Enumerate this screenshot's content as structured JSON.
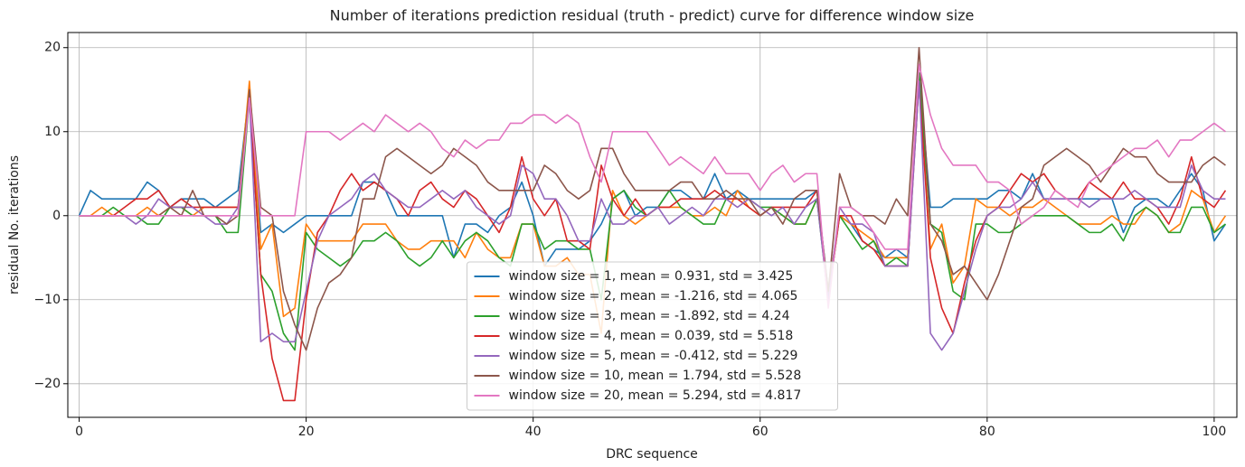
{
  "chart_data": {
    "type": "line",
    "title": "Number of iterations prediction residual (truth - predict) curve for difference window size",
    "xlabel": "DRC sequence",
    "ylabel": "residual No. iterations",
    "x": [
      0,
      1,
      2,
      3,
      4,
      5,
      6,
      7,
      8,
      9,
      10,
      11,
      12,
      13,
      14,
      15,
      16,
      17,
      18,
      19,
      20,
      21,
      22,
      23,
      24,
      25,
      26,
      27,
      28,
      29,
      30,
      31,
      32,
      33,
      34,
      35,
      36,
      37,
      38,
      39,
      40,
      41,
      42,
      43,
      44,
      45,
      46,
      47,
      48,
      49,
      50,
      51,
      52,
      53,
      54,
      55,
      56,
      57,
      58,
      59,
      60,
      61,
      62,
      63,
      64,
      65,
      66,
      67,
      68,
      69,
      70,
      71,
      72,
      73,
      74,
      75,
      76,
      77,
      78,
      79,
      80,
      81,
      82,
      83,
      84,
      85,
      86,
      87,
      88,
      89,
      90,
      91,
      92,
      93,
      94,
      95,
      96,
      97,
      98,
      99,
      100,
      101
    ],
    "xlim": [
      -1,
      102
    ],
    "ylim": [
      -24,
      21.8
    ],
    "xticks": [
      0,
      20,
      40,
      60,
      80,
      100
    ],
    "yticks": [
      {
        "value": -20,
        "label": "−20"
      },
      {
        "value": -10,
        "label": "−10"
      },
      0,
      10,
      20
    ],
    "grid": true,
    "legend": "lower center",
    "series": [
      {
        "name": "window size = 1, mean = 0.931, std = 3.425",
        "color": "#1f77b4",
        "values": [
          0,
          3,
          2,
          2,
          2,
          2,
          4,
          3,
          1,
          2,
          2,
          2,
          1,
          2,
          3,
          15,
          -2,
          -1,
          -2,
          -1,
          0,
          0,
          0,
          0,
          0,
          4,
          4,
          3,
          0,
          0,
          0,
          0,
          0,
          -5,
          -1,
          -1,
          -2,
          0,
          1,
          4,
          0,
          -6,
          -4,
          -4,
          -4,
          -3,
          -1,
          2,
          3,
          0,
          1,
          1,
          3,
          3,
          2,
          2,
          5,
          2,
          3,
          2,
          2,
          2,
          2,
          2,
          2,
          3,
          -9,
          0,
          -1,
          -3,
          -4,
          -5,
          -4,
          -5,
          17,
          1,
          1,
          2,
          2,
          2,
          2,
          3,
          3,
          2,
          5,
          2,
          2,
          2,
          2,
          2,
          2,
          2,
          -2,
          1,
          2,
          2,
          1,
          3,
          5,
          3,
          -3,
          -1
        ]
      },
      {
        "name": "window size = 2, mean = -1.216, std = 4.065",
        "color": "#ff7f0e",
        "values": [
          0,
          0,
          1,
          0,
          0,
          0,
          1,
          0,
          1,
          1,
          0,
          1,
          1,
          1,
          1,
          16,
          -4,
          -1,
          -12,
          -11,
          -1,
          -3,
          -3,
          -3,
          -3,
          -1,
          -1,
          -1,
          -3,
          -4,
          -4,
          -3,
          -3,
          -3,
          -5,
          -2,
          -4,
          -5,
          -5,
          -1,
          -1,
          -6,
          -6,
          -5,
          -7,
          -7,
          -14,
          3,
          0,
          -1,
          0,
          1,
          1,
          1,
          0,
          0,
          1,
          0,
          3,
          1,
          0,
          1,
          0,
          -1,
          -1,
          2,
          -9,
          0,
          -1,
          -2,
          -3,
          -5,
          -5,
          -5,
          16,
          -4,
          -1,
          -8,
          -6,
          2,
          1,
          1,
          0,
          1,
          1,
          2,
          1,
          0,
          -1,
          -1,
          -1,
          0,
          -1,
          -1,
          1,
          0,
          -2,
          -1,
          3,
          2,
          -2,
          0
        ]
      },
      {
        "name": "window size = 3, mean = -1.892, std = 4.24",
        "color": "#2ca02c",
        "values": [
          0,
          0,
          0,
          1,
          0,
          0,
          -1,
          -1,
          1,
          1,
          0,
          0,
          0,
          -2,
          -2,
          14,
          -7,
          -9,
          -14,
          -16,
          -2,
          -4,
          -5,
          -6,
          -5,
          -3,
          -3,
          -2,
          -3,
          -5,
          -6,
          -5,
          -3,
          -5,
          -3,
          -2,
          -3,
          -5,
          -6,
          -1,
          -1,
          -4,
          -3,
          -3,
          -4,
          -4,
          -10,
          2,
          3,
          1,
          0,
          1,
          3,
          1,
          0,
          -1,
          -1,
          2,
          2,
          2,
          1,
          1,
          0,
          -1,
          -1,
          2,
          -10,
          0,
          -2,
          -4,
          -3,
          -6,
          -5,
          -6,
          17,
          -1,
          -2,
          -9,
          -10,
          -1,
          -1,
          -2,
          -2,
          -1,
          0,
          0,
          0,
          0,
          -1,
          -2,
          -2,
          -1,
          -3,
          0,
          1,
          0,
          -2,
          -2,
          1,
          1,
          -2,
          -1
        ]
      },
      {
        "name": "window size = 4, mean = 0.039, std = 5.518",
        "color": "#d62728",
        "values": [
          0,
          0,
          0,
          0,
          1,
          2,
          2,
          3,
          1,
          2,
          1,
          1,
          1,
          1,
          1,
          14,
          -7,
          -17,
          -22,
          -22,
          -10,
          -2,
          0,
          3,
          5,
          3,
          4,
          3,
          2,
          0,
          3,
          4,
          2,
          1,
          3,
          2,
          0,
          -2,
          1,
          7,
          2,
          0,
          2,
          -3,
          -3,
          -4,
          6,
          2,
          0,
          2,
          0,
          1,
          1,
          2,
          2,
          2,
          3,
          2,
          2,
          1,
          0,
          1,
          1,
          1,
          1,
          3,
          -10,
          0,
          0,
          -3,
          -4,
          -6,
          -6,
          -6,
          16,
          -5,
          -11,
          -14,
          -8,
          -3,
          0,
          1,
          3,
          5,
          4,
          5,
          3,
          2,
          2,
          4,
          3,
          2,
          4,
          2,
          2,
          1,
          -1,
          2,
          7,
          2,
          1,
          3
        ]
      },
      {
        "name": "window size = 5, mean = -0.412, std = 5.229",
        "color": "#9467bd",
        "values": [
          0,
          0,
          0,
          0,
          0,
          -1,
          0,
          2,
          1,
          1,
          1,
          0,
          -1,
          -1,
          1,
          14,
          -15,
          -14,
          -15,
          -15,
          -9,
          -3,
          0,
          1,
          2,
          4,
          5,
          3,
          2,
          1,
          1,
          2,
          3,
          2,
          3,
          1,
          0,
          -1,
          0,
          6,
          5,
          2,
          2,
          0,
          -3,
          -3,
          2,
          -1,
          -1,
          0,
          0,
          1,
          -1,
          0,
          1,
          0,
          2,
          2,
          1,
          2,
          1,
          0,
          1,
          -1,
          1,
          2,
          -10,
          1,
          -1,
          -1,
          -2,
          -6,
          -6,
          -6,
          16,
          -14,
          -16,
          -14,
          -9,
          -4,
          0,
          1,
          1,
          2,
          4,
          2,
          2,
          2,
          2,
          1,
          2,
          2,
          2,
          3,
          2,
          1,
          1,
          1,
          6,
          3,
          2,
          2
        ]
      },
      {
        "name": "window size = 10, mean = 1.794, std = 5.528",
        "color": "#8c564b",
        "values": [
          0,
          0,
          0,
          0,
          0,
          0,
          0,
          0,
          1,
          0,
          3,
          0,
          0,
          -1,
          0,
          15,
          1,
          0,
          -9,
          -13,
          -16,
          -11,
          -8,
          -7,
          -5,
          2,
          2,
          7,
          8,
          7,
          6,
          5,
          6,
          8,
          7,
          6,
          4,
          3,
          3,
          3,
          3,
          6,
          5,
          3,
          2,
          3,
          8,
          8,
          5,
          3,
          3,
          3,
          3,
          4,
          4,
          2,
          2,
          3,
          2,
          2,
          0,
          1,
          -1,
          2,
          3,
          3,
          -9,
          5,
          1,
          0,
          0,
          -1,
          2,
          0,
          20,
          -1,
          -3,
          -7,
          -6,
          -8,
          -10,
          -7,
          -3,
          1,
          2,
          6,
          7,
          8,
          7,
          6,
          4,
          6,
          8,
          7,
          7,
          5,
          4,
          4,
          4,
          6,
          7,
          6
        ]
      },
      {
        "name": "window size = 20, mean = 5.294, std = 4.817",
        "color": "#e377c2",
        "values": [
          0,
          0,
          0,
          0,
          0,
          0,
          0,
          0,
          0,
          0,
          0,
          0,
          0,
          0,
          0,
          14,
          0,
          0,
          0,
          0,
          10,
          10,
          10,
          9,
          10,
          11,
          10,
          12,
          11,
          10,
          11,
          10,
          8,
          7,
          9,
          8,
          9,
          9,
          11,
          11,
          12,
          12,
          11,
          12,
          11,
          7,
          4,
          10,
          10,
          10,
          10,
          8,
          6,
          7,
          6,
          5,
          7,
          5,
          5,
          5,
          3,
          5,
          6,
          4,
          5,
          5,
          -11,
          1,
          1,
          0,
          -2,
          -4,
          -4,
          -4,
          18,
          12,
          8,
          6,
          6,
          6,
          4,
          4,
          3,
          -1,
          0,
          1,
          3,
          2,
          1,
          4,
          5,
          6,
          7,
          8,
          8,
          9,
          7,
          9,
          9,
          10,
          11,
          10
        ]
      }
    ]
  }
}
